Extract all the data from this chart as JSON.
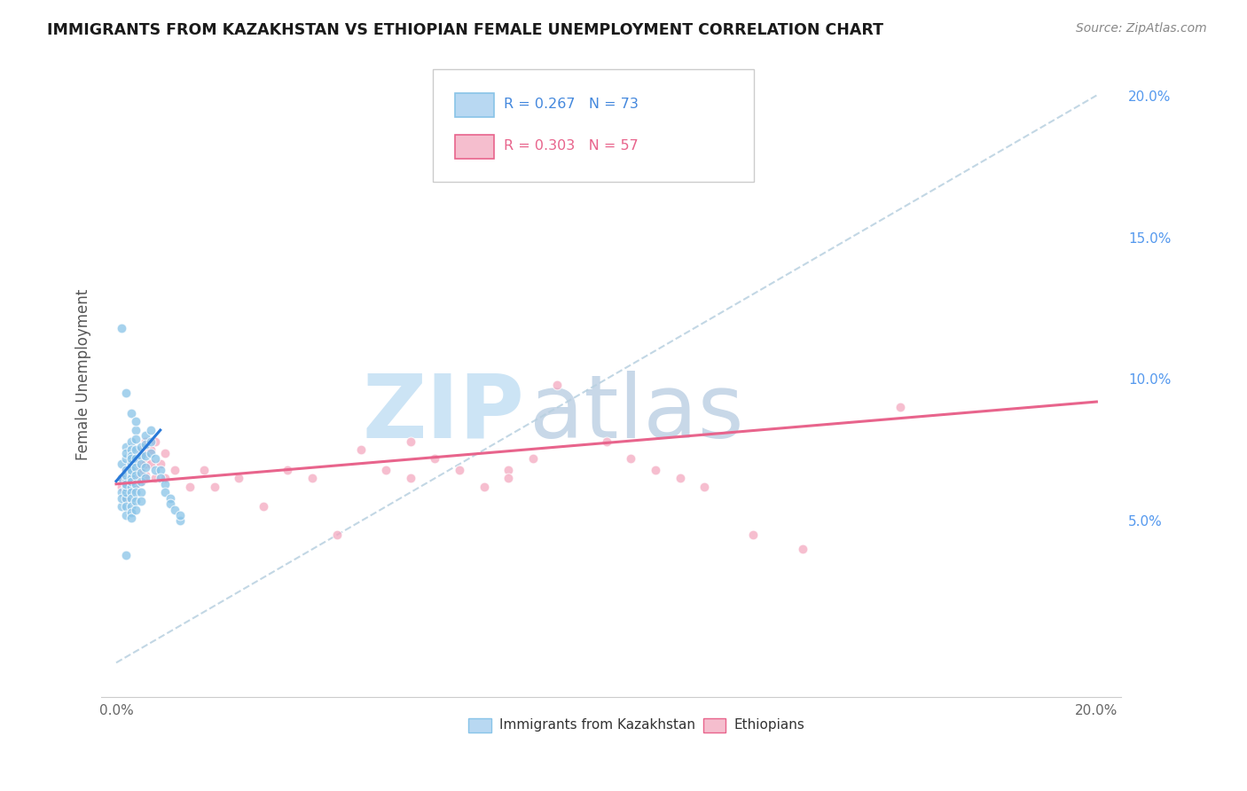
{
  "title": "IMMIGRANTS FROM KAZAKHSTAN VS ETHIOPIAN FEMALE UNEMPLOYMENT CORRELATION CHART",
  "source": "Source: ZipAtlas.com",
  "ylabel": "Female Unemployment",
  "kaz_color": "#89c4e8",
  "eth_color": "#f4a8c0",
  "kaz_trend_color": "#2979d8",
  "eth_trend_color": "#e8648c",
  "gray_dash_color": "#b8d0e0",
  "background_color": "#ffffff",
  "grid_color": "#e5e5e5",
  "axis_label_color": "#555555",
  "right_tick_color": "#5599ee",
  "watermark_zip_color": "#cce4f5",
  "watermark_atlas_color": "#c8d8e8",
  "legend_border_color": "#cccccc",
  "xlim": [
    -0.003,
    0.205
  ],
  "ylim": [
    -0.012,
    0.215
  ],
  "kaz_scatter_x": [
    0.001,
    0.001,
    0.001,
    0.001,
    0.001,
    0.002,
    0.002,
    0.002,
    0.002,
    0.002,
    0.002,
    0.002,
    0.002,
    0.002,
    0.002,
    0.002,
    0.002,
    0.003,
    0.003,
    0.003,
    0.003,
    0.003,
    0.003,
    0.003,
    0.003,
    0.003,
    0.003,
    0.003,
    0.003,
    0.003,
    0.003,
    0.003,
    0.004,
    0.004,
    0.004,
    0.004,
    0.004,
    0.004,
    0.004,
    0.004,
    0.004,
    0.004,
    0.005,
    0.005,
    0.005,
    0.005,
    0.005,
    0.005,
    0.005,
    0.006,
    0.006,
    0.006,
    0.006,
    0.006,
    0.007,
    0.007,
    0.007,
    0.008,
    0.008,
    0.009,
    0.009,
    0.01,
    0.01,
    0.011,
    0.011,
    0.012,
    0.013,
    0.013,
    0.001,
    0.002,
    0.003,
    0.004,
    0.002
  ],
  "kaz_scatter_y": [
    0.06,
    0.065,
    0.07,
    0.055,
    0.058,
    0.068,
    0.072,
    0.076,
    0.064,
    0.062,
    0.058,
    0.055,
    0.06,
    0.066,
    0.063,
    0.052,
    0.074,
    0.078,
    0.075,
    0.073,
    0.07,
    0.067,
    0.065,
    0.062,
    0.06,
    0.058,
    0.055,
    0.053,
    0.051,
    0.068,
    0.072,
    0.064,
    0.082,
    0.079,
    0.075,
    0.072,
    0.069,
    0.066,
    0.063,
    0.06,
    0.057,
    0.054,
    0.076,
    0.073,
    0.07,
    0.067,
    0.064,
    0.06,
    0.057,
    0.08,
    0.077,
    0.073,
    0.069,
    0.065,
    0.082,
    0.078,
    0.074,
    0.072,
    0.068,
    0.068,
    0.065,
    0.063,
    0.06,
    0.058,
    0.056,
    0.054,
    0.05,
    0.052,
    0.118,
    0.095,
    0.088,
    0.085,
    0.038
  ],
  "eth_scatter_x": [
    0.001,
    0.001,
    0.002,
    0.002,
    0.002,
    0.002,
    0.003,
    0.003,
    0.003,
    0.003,
    0.004,
    0.004,
    0.004,
    0.004,
    0.005,
    0.005,
    0.005,
    0.005,
    0.006,
    0.006,
    0.006,
    0.006,
    0.007,
    0.007,
    0.008,
    0.008,
    0.009,
    0.01,
    0.01,
    0.012,
    0.015,
    0.018,
    0.02,
    0.025,
    0.03,
    0.035,
    0.04,
    0.045,
    0.05,
    0.055,
    0.06,
    0.06,
    0.065,
    0.07,
    0.075,
    0.08,
    0.08,
    0.085,
    0.09,
    0.1,
    0.105,
    0.11,
    0.115,
    0.12,
    0.13,
    0.14,
    0.16
  ],
  "eth_scatter_y": [
    0.065,
    0.062,
    0.068,
    0.065,
    0.062,
    0.058,
    0.072,
    0.068,
    0.065,
    0.062,
    0.072,
    0.068,
    0.065,
    0.062,
    0.075,
    0.071,
    0.068,
    0.064,
    0.078,
    0.074,
    0.07,
    0.066,
    0.075,
    0.07,
    0.078,
    0.065,
    0.07,
    0.074,
    0.065,
    0.068,
    0.062,
    0.068,
    0.062,
    0.065,
    0.055,
    0.068,
    0.065,
    0.045,
    0.075,
    0.068,
    0.078,
    0.065,
    0.072,
    0.068,
    0.062,
    0.068,
    0.065,
    0.072,
    0.098,
    0.078,
    0.072,
    0.068,
    0.065,
    0.062,
    0.045,
    0.04,
    0.09
  ],
  "kaz_trend_x": [
    0.0,
    0.009
  ],
  "kaz_trend_y": [
    0.064,
    0.082
  ],
  "eth_trend_x": [
    0.0,
    0.2
  ],
  "eth_trend_y": [
    0.063,
    0.092
  ],
  "gray_trend_x": [
    0.0,
    0.2
  ],
  "gray_trend_y": [
    0.0,
    0.2
  ]
}
